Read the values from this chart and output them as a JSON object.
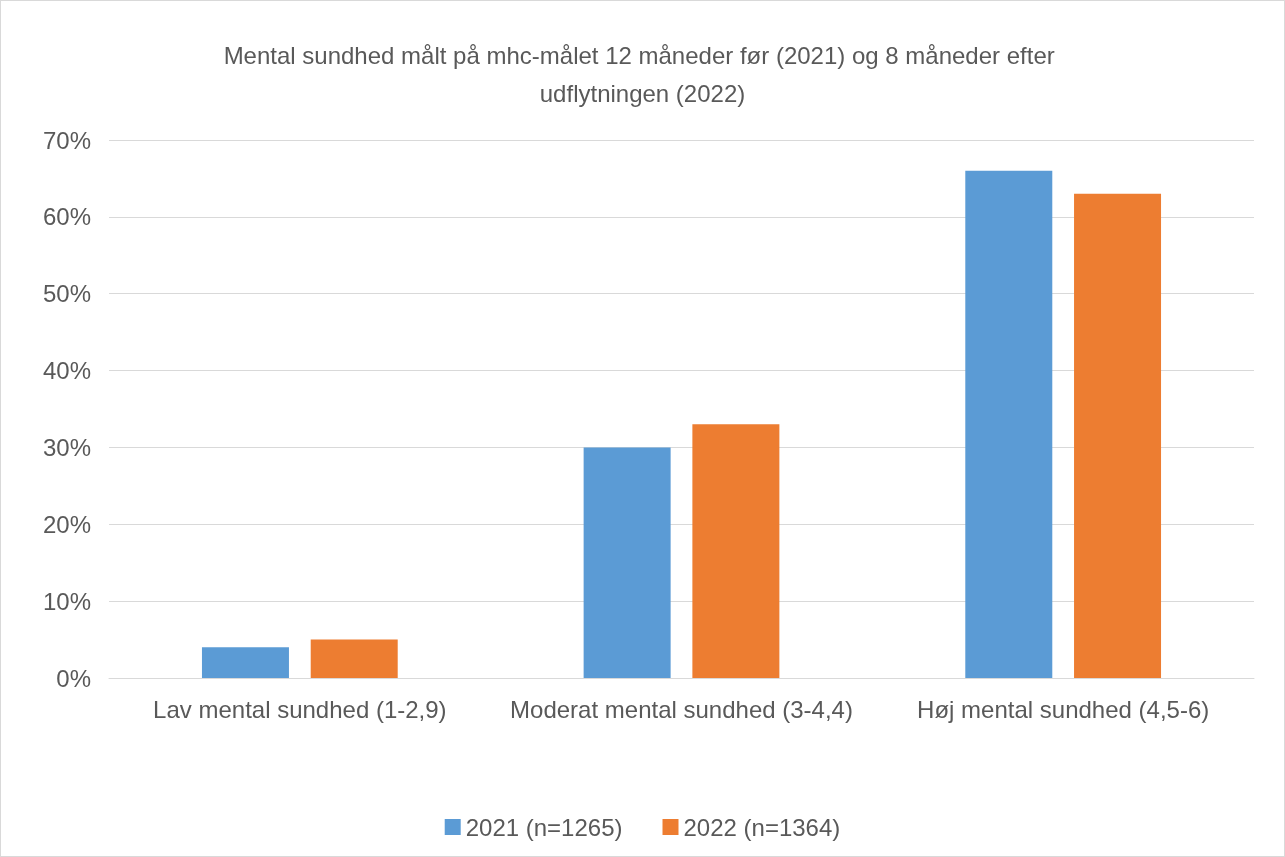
{
  "chart_data": {
    "type": "bar",
    "title": "Mental sundhed målt på mhc-målet 12 måneder før (2021) og 8 måneder efter udflytningen (2022)",
    "categories": [
      "Lav mental sundhed (1-2,9)",
      "Moderat mental sundhed (3-4,4)",
      "Høj mental sundhed (4,5-6)"
    ],
    "series": [
      {
        "name": "2021 (n=1265)",
        "color": "#5b9bd5",
        "values": [
          4,
          30,
          66
        ]
      },
      {
        "name": "2022 (n=1364)",
        "color": "#ed7d31",
        "values": [
          5,
          33,
          63
        ]
      }
    ],
    "ylim": [
      0,
      70
    ],
    "yticks": [
      {
        "value": 0,
        "label": "0%"
      },
      {
        "value": 10,
        "label": "10%"
      },
      {
        "value": 20,
        "label": "20%"
      },
      {
        "value": 30,
        "label": "30%"
      },
      {
        "value": 40,
        "label": "40%"
      },
      {
        "value": 50,
        "label": "50%"
      },
      {
        "value": 60,
        "label": "60%"
      },
      {
        "value": 70,
        "label": "70%"
      }
    ],
    "grid": "y",
    "legend": "bottom"
  }
}
